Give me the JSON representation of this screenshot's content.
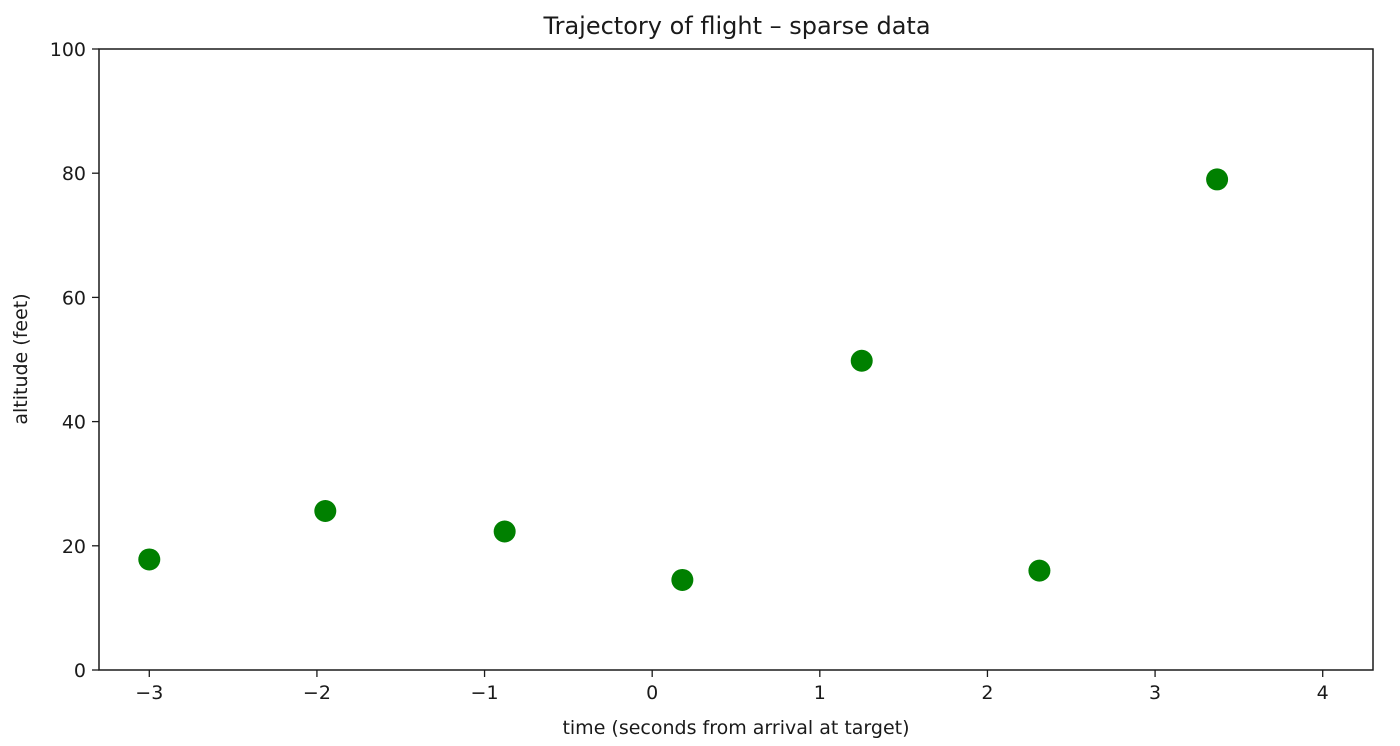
{
  "chart_data": {
    "type": "scatter",
    "title": "Trajectory of flight  –  sparse data",
    "xlabel": "time (seconds from arrival at target)",
    "ylabel": "altitude (feet)",
    "xlim": [
      -3.3,
      4.3
    ],
    "ylim": [
      0,
      100
    ],
    "x_ticks": [
      -3,
      -2,
      -1,
      0,
      1,
      2,
      3,
      4
    ],
    "x_tick_labels": [
      "−3",
      "−2",
      "−1",
      "0",
      "1",
      "2",
      "3",
      "4"
    ],
    "y_ticks": [
      0,
      20,
      40,
      60,
      80,
      100
    ],
    "y_tick_labels": [
      "0",
      "20",
      "40",
      "60",
      "80",
      "100"
    ],
    "grid": false,
    "marker_color": "#008000",
    "series": [
      {
        "x": [
          -3.0,
          -1.95,
          -0.88,
          0.18,
          1.25,
          2.31,
          3.37
        ],
        "y": [
          17.8,
          25.6,
          22.3,
          14.5,
          49.8,
          16.0,
          79.0
        ]
      }
    ]
  }
}
